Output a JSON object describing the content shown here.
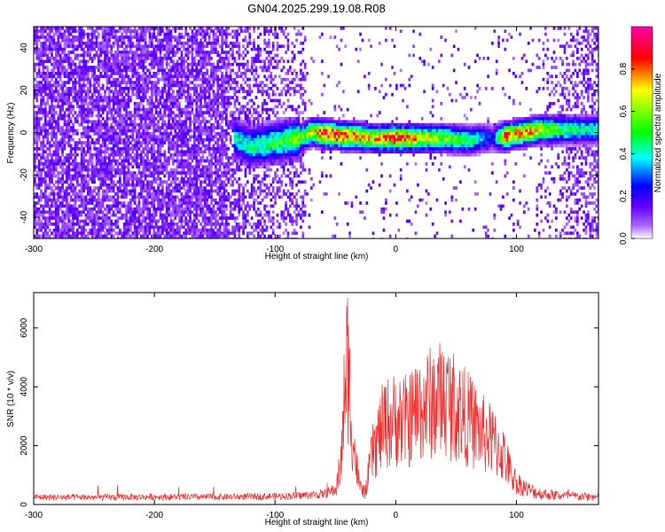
{
  "title": "GN04.2025.299.19.08.R08",
  "chart_data": [
    {
      "type": "heatmap",
      "xlabel": "Height of straight line (km)",
      "ylabel": "Frequency (Hz)",
      "xlim": [
        -300,
        168
      ],
      "ylim": [
        -50,
        50
      ],
      "xticks": [
        -300,
        -200,
        -100,
        0,
        100
      ],
      "yticks": [
        -40,
        -20,
        0,
        20,
        40
      ],
      "colorbar": {
        "label": "Normalized spectral amplitude",
        "range": [
          0,
          1
        ],
        "ticks": [
          0.0,
          0.2,
          0.4,
          0.6,
          0.8
        ],
        "colormap": [
          "#ffffff",
          "#6600ff",
          "#0000ff",
          "#00ffff",
          "#00ff00",
          "#ffff00",
          "#ff0000",
          "#ff00aa"
        ]
      },
      "ridge": {
        "x": [
          -135,
          -120,
          -100,
          -80,
          -70,
          -60,
          -40,
          -20,
          0,
          20,
          40,
          60,
          70,
          80,
          90,
          100,
          110,
          120,
          140,
          168
        ],
        "y": [
          -2,
          -6,
          -4,
          -2,
          1,
          0,
          -1,
          -2,
          -2,
          -2,
          -2,
          -3,
          -2,
          -2,
          -1,
          0,
          1,
          2,
          2,
          2
        ],
        "amplitude": [
          0.4,
          0.45,
          0.5,
          0.6,
          0.7,
          0.9,
          0.8,
          0.7,
          0.85,
          0.7,
          0.6,
          0.5,
          0.4,
          0.2,
          0.85,
          0.75,
          0.8,
          0.65,
          0.5,
          0.4
        ]
      },
      "grid": false
    },
    {
      "type": "line",
      "xlabel": "Height of straight line (km)",
      "ylabel": "SNR (10 * v/v)",
      "xlim": [
        -300,
        168
      ],
      "ylim": [
        0,
        7200
      ],
      "xticks": [
        -300,
        -200,
        -100,
        0,
        100
      ],
      "yticks": [
        0,
        2000,
        4000,
        6000
      ],
      "color": "#f03030",
      "series": [
        {
          "x": [
            -300,
            -250,
            -200,
            -150,
            -100,
            -80,
            -60,
            -50,
            -45,
            -42,
            -40,
            -38,
            -35,
            -30,
            -25,
            -20,
            -10,
            0,
            10,
            20,
            30,
            40,
            50,
            60,
            70,
            80,
            90,
            95,
            100,
            110,
            120,
            140,
            168
          ],
          "y": [
            250,
            240,
            260,
            250,
            280,
            300,
            350,
            500,
            1800,
            5000,
            6000,
            4500,
            2500,
            700,
            500,
            2000,
            3300,
            3500,
            3400,
            4000,
            4200,
            4400,
            4000,
            3500,
            3000,
            2600,
            2000,
            1300,
            900,
            600,
            450,
            350,
            300
          ]
        }
      ],
      "grid": false
    }
  ]
}
